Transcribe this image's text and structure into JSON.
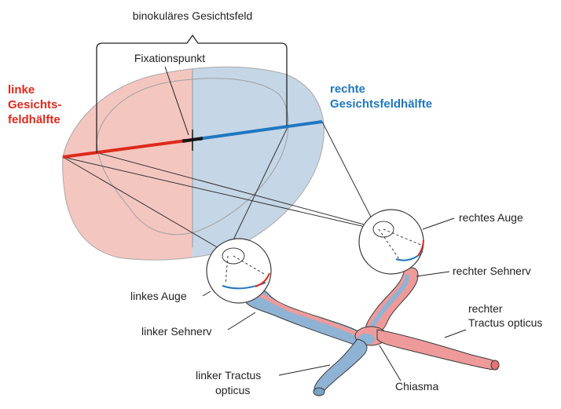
{
  "colors": {
    "left_field": "#f4c6c0",
    "right_field": "#c5d6e6",
    "red": "#dd2a1b",
    "blue": "#1f77c0",
    "optic_pink": "#ef9a9a",
    "optic_blue": "#8fb3d4",
    "outline": "#3a3a3a"
  },
  "labels": {
    "binocular": "binokuläres Gesichtsfeld",
    "fixation": "Fixationspunkt",
    "left_half_1": "linke",
    "left_half_2": "Gesichts-",
    "left_half_3": "feldhälfte",
    "right_half_1": "rechte",
    "right_half_2": "Gesichtsfeldhälfte",
    "right_eye": "rechtes Auge",
    "right_nerve": "rechter Sehnerv",
    "right_tract_1": "rechter",
    "right_tract_2": "Tractus opticus",
    "left_eye": "linkes Auge",
    "left_nerve": "linker Sehnerv",
    "left_tract_1": "linker Tractus",
    "left_tract_2": "opticus",
    "chiasma": "Chiasma"
  }
}
